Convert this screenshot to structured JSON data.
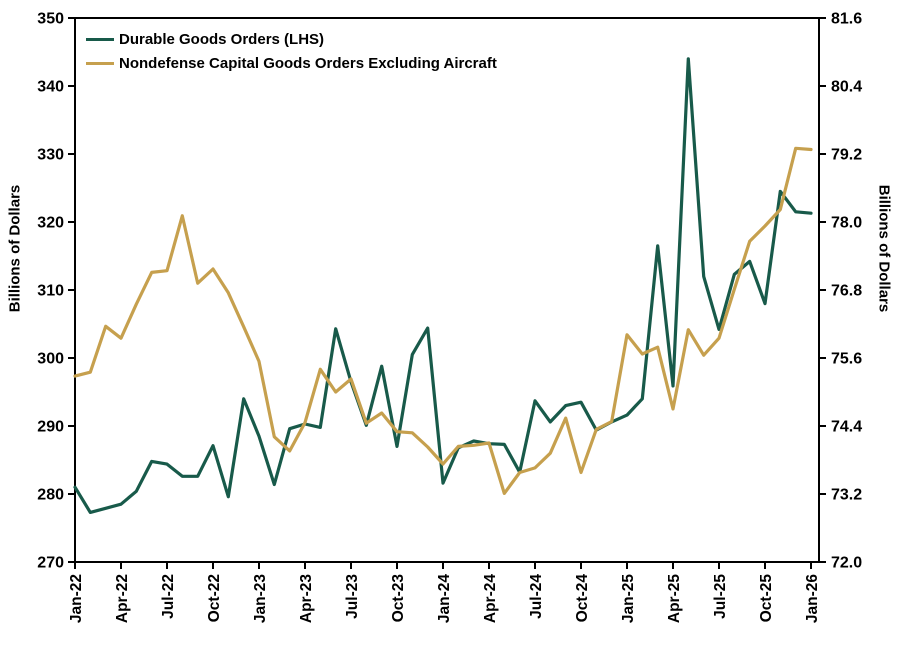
{
  "chart_data": {
    "type": "line",
    "title": "",
    "grid": false,
    "legend_position": "top-left-inside",
    "legend": [
      {
        "label": "Durable Goods Orders (LHS)",
        "color": "#185A4A"
      },
      {
        "label": "Nondefense Capital Goods Orders Excluding Aircraft",
        "color": "#C6A04E"
      }
    ],
    "left_axis": {
      "label": "Billions of Dollars",
      "min": 270,
      "max": 350,
      "tick_step": 10,
      "tick_labels": [
        "350",
        "340",
        "330",
        "320",
        "310",
        "300",
        "290",
        "280",
        "270"
      ]
    },
    "right_axis": {
      "label": "Billions of Dollars",
      "min": 72.0,
      "max": 81.6,
      "tick_step": 1.2,
      "tick_labels": [
        "81.6",
        "80.4",
        "79.2",
        "78.0",
        "76.8",
        "75.6",
        "74.4",
        "73.2",
        "72.0"
      ]
    },
    "x_axis": {
      "tick_labels": [
        "Jan-22",
        "Apr-22",
        "Jul-22",
        "Oct-22",
        "Jan-23",
        "Apr-23",
        "Jul-23",
        "Oct-23",
        "Jan-24",
        "Apr-24",
        "Jul-24",
        "Oct-24",
        "Jan-25",
        "Apr-25",
        "Jul-25",
        "Oct-25",
        "Jan-26"
      ]
    },
    "x": [
      "Jan-22",
      "Feb-22",
      "Mar-22",
      "Apr-22",
      "May-22",
      "Jun-22",
      "Jul-22",
      "Aug-22",
      "Sep-22",
      "Oct-22",
      "Nov-22",
      "Dec-22",
      "Jan-23",
      "Feb-23",
      "Mar-23",
      "Apr-23",
      "May-23",
      "Jun-23",
      "Jul-23",
      "Aug-23",
      "Sep-23",
      "Oct-23",
      "Nov-23",
      "Dec-23",
      "Jan-24",
      "Feb-24",
      "Mar-24",
      "Apr-24",
      "May-24",
      "Jun-24",
      "Jul-24",
      "Aug-24",
      "Sep-24",
      "Oct-24",
      "Nov-24",
      "Dec-24",
      "Jan-25",
      "Feb-25",
      "Mar-25",
      "Apr-25",
      "May-25",
      "Jun-25",
      "Jul-25",
      "Aug-25",
      "Sep-25",
      "Oct-25",
      "Nov-25",
      "Dec-25",
      "Jan-26"
    ],
    "series": [
      {
        "name": "Durable Goods Orders (LHS)",
        "axis": "left",
        "color": "#185A4A",
        "values": [
          281.0,
          277.3,
          277.9,
          278.5,
          280.4,
          284.8,
          284.4,
          282.6,
          282.6,
          287.1,
          279.6,
          294.0,
          288.5,
          281.4,
          289.6,
          290.3,
          289.8,
          304.3,
          296.5,
          290.1,
          298.8,
          287.0,
          300.5,
          304.4,
          281.6,
          286.8,
          287.8,
          287.4,
          287.3,
          283.2,
          293.7,
          290.6,
          293.0,
          293.5,
          289.4,
          290.6,
          291.6,
          294.0,
          316.5,
          295.9,
          344.0,
          312.0,
          304.2,
          312.3,
          314.2,
          308.0,
          324.5,
          321.5,
          321.3
        ]
      },
      {
        "name": "Nondefense Capital Goods Orders Excluding Aircraft",
        "axis": "right",
        "color": "#C6A04E",
        "values": [
          75.28,
          75.35,
          76.16,
          75.95,
          76.55,
          77.11,
          77.14,
          78.11,
          76.92,
          77.17,
          76.75,
          76.15,
          75.54,
          74.21,
          73.96,
          74.46,
          75.4,
          75.0,
          75.23,
          74.45,
          74.63,
          74.3,
          74.28,
          74.03,
          73.73,
          74.04,
          74.06,
          74.1,
          73.21,
          73.58,
          73.66,
          73.92,
          74.54,
          73.58,
          74.34,
          74.48,
          76.01,
          75.67,
          75.79,
          74.7,
          76.1,
          75.65,
          75.95,
          76.81,
          77.66,
          77.93,
          78.22,
          79.3,
          79.28
        ]
      }
    ]
  }
}
